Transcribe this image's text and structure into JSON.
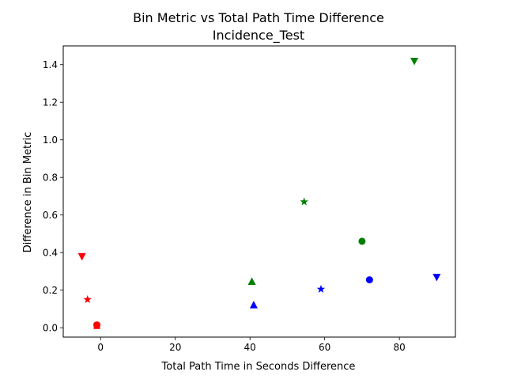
{
  "chart_data": {
    "type": "scatter",
    "title": "Bin Metric vs Total Path Time Difference",
    "subtitle": "Incidence_Test",
    "xlabel": "Total Path Time in Seconds Difference",
    "ylabel": "Difference in Bin Metric",
    "xlim": [
      -10,
      95
    ],
    "ylim": [
      -0.05,
      1.5
    ],
    "xticks": [
      0,
      20,
      40,
      60,
      80
    ],
    "xtick_labels": [
      "0",
      "20",
      "40",
      "60",
      "80"
    ],
    "yticks": [
      0.0,
      0.2,
      0.4,
      0.6,
      0.8,
      1.0,
      1.2,
      1.4
    ],
    "ytick_labels": [
      "0.0",
      "0.2",
      "0.4",
      "0.6",
      "0.8",
      "1.0",
      "1.2",
      "1.4"
    ],
    "grid": false,
    "series": [
      {
        "color": "#ff0000",
        "points": [
          {
            "x": -1,
            "y": 0.01,
            "marker": "square"
          },
          {
            "x": -1,
            "y": 0.015,
            "marker": "circle"
          },
          {
            "x": -3.5,
            "y": 0.15,
            "marker": "star"
          },
          {
            "x": -5,
            "y": 0.38,
            "marker": "triangle-down"
          }
        ]
      },
      {
        "color": "#008000",
        "points": [
          {
            "x": 40.5,
            "y": 0.245,
            "marker": "triangle-up"
          },
          {
            "x": 54.5,
            "y": 0.67,
            "marker": "star"
          },
          {
            "x": 70,
            "y": 0.46,
            "marker": "circle"
          },
          {
            "x": 84,
            "y": 1.42,
            "marker": "triangle-down"
          }
        ]
      },
      {
        "color": "#0000ff",
        "points": [
          {
            "x": 41,
            "y": 0.12,
            "marker": "triangle-up"
          },
          {
            "x": 59,
            "y": 0.205,
            "marker": "star"
          },
          {
            "x": 72,
            "y": 0.255,
            "marker": "circle"
          },
          {
            "x": 90,
            "y": 0.27,
            "marker": "triangle-down"
          }
        ]
      }
    ]
  }
}
